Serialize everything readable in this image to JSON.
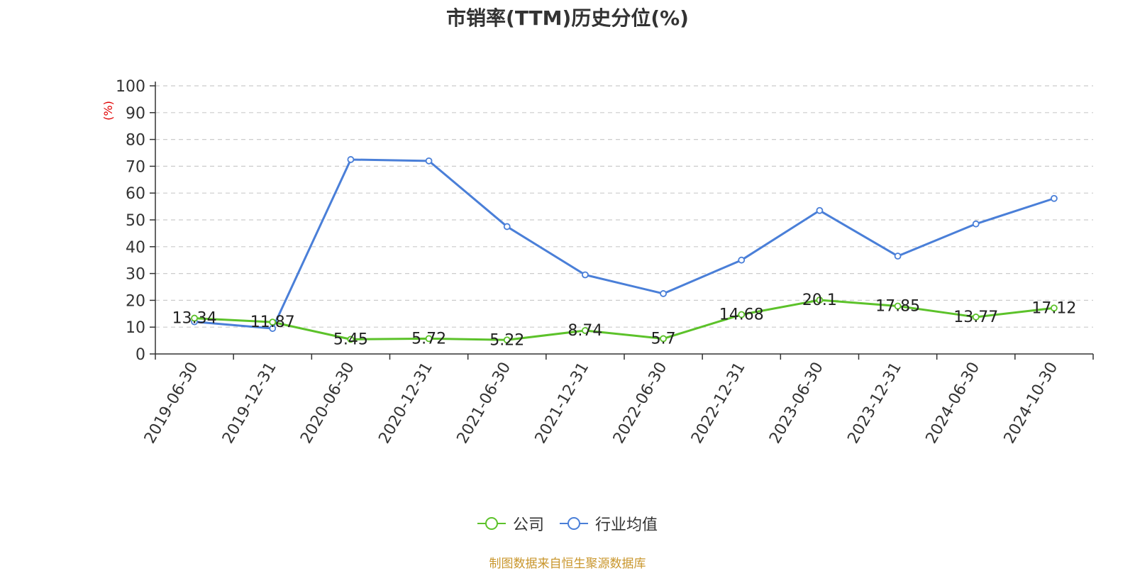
{
  "title": "市销率(TTM)历史分位(%)",
  "source_note": "制图数据来自恒生聚源数据库",
  "colors": {
    "company": "#5cc22a",
    "industry": "#4a7fd8",
    "ylabel": "#e00000",
    "source": "#c9962c"
  },
  "chart_data": {
    "type": "line",
    "title": "市销率(TTM)历史分位(%)",
    "xlabel": "",
    "ylabel": "(%)",
    "ylim": [
      0,
      100
    ],
    "yticks": [
      0,
      10,
      20,
      30,
      40,
      50,
      60,
      70,
      80,
      90,
      100
    ],
    "grid": true,
    "legend_position": "bottom",
    "categories": [
      "2019-06-30",
      "2019-12-31",
      "2020-06-30",
      "2020-12-31",
      "2021-06-30",
      "2021-12-31",
      "2022-06-30",
      "2022-12-31",
      "2023-06-30",
      "2023-12-31",
      "2024-06-30",
      "2024-10-30"
    ],
    "series": [
      {
        "name": "公司",
        "color": "#5cc22a",
        "values": [
          13.34,
          11.87,
          5.45,
          5.72,
          5.22,
          8.74,
          5.7,
          14.68,
          20.1,
          17.85,
          13.77,
          17.12
        ],
        "labels": [
          "13.34",
          "11.87",
          "5.45",
          "5.72",
          "5.22",
          "8.74",
          "5.7",
          "14.68",
          "20.1",
          "17.85",
          "13.77",
          "17.12"
        ]
      },
      {
        "name": "行业均值",
        "color": "#4a7fd8",
        "values": [
          12.0,
          9.5,
          72.5,
          72.0,
          47.5,
          29.5,
          22.5,
          35.0,
          53.5,
          36.5,
          48.5,
          58.0
        ]
      }
    ]
  }
}
